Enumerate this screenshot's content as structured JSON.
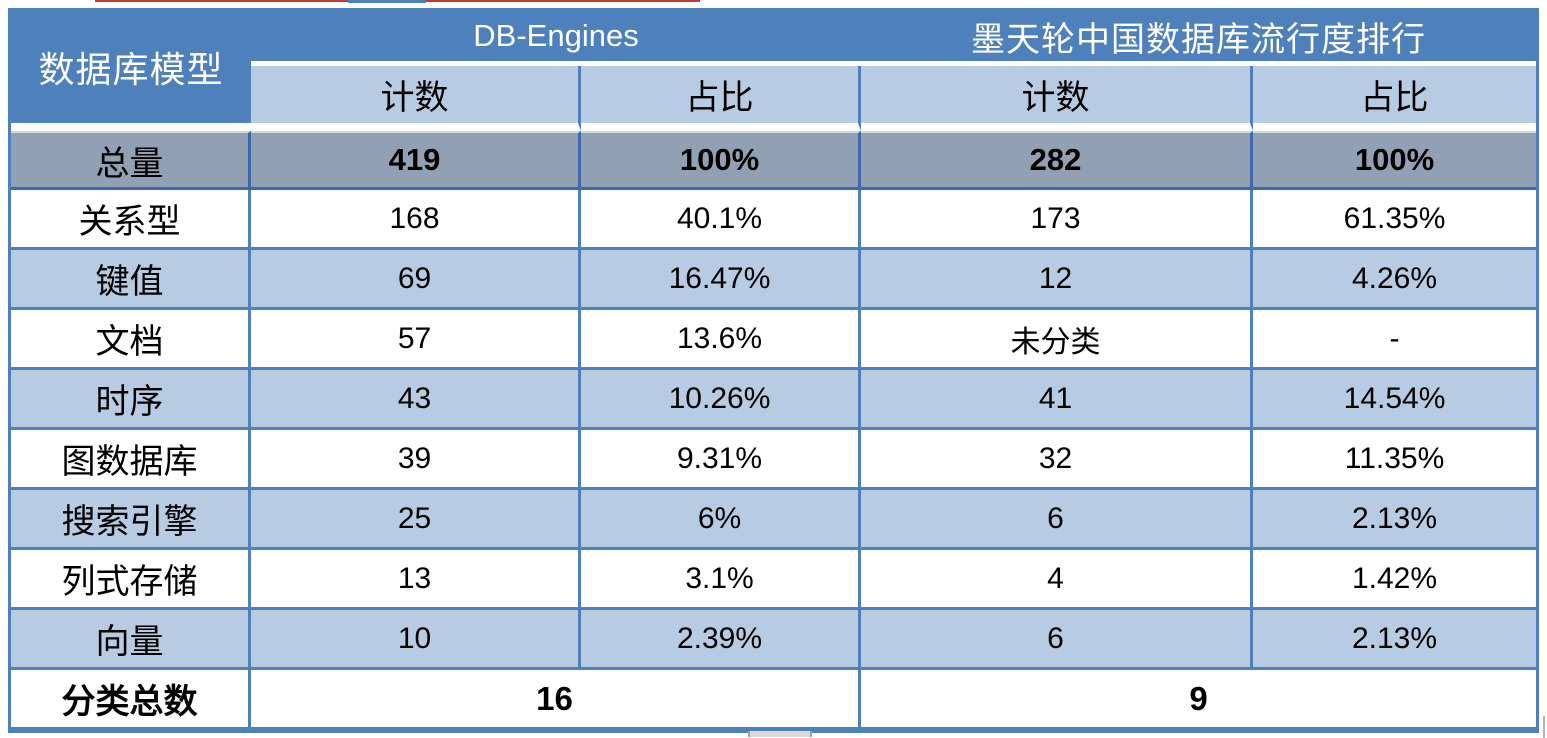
{
  "colors": {
    "header_blue": "#4E80BC",
    "band_light_blue": "#B7CBE3",
    "total_row_gray": "#91A0B3",
    "grid_blue": "#4E80BC",
    "grid_dark_blue": "#3C69A8",
    "header_text": "#FFFFFF",
    "body_text": "#000000",
    "top_artifact_red": "#C23A34"
  },
  "chart_data": {
    "type": "table",
    "corner_header": "数据库模型",
    "groups": [
      {
        "label": "DB-Engines",
        "colspan": 2
      },
      {
        "label": "墨天轮中国数据库流行度排行",
        "colspan": 2
      }
    ],
    "sub_headers": [
      "计数",
      "占比",
      "计数",
      "占比"
    ],
    "total_row": {
      "label": "总量",
      "cells": [
        "419",
        "100%",
        "282",
        "100%"
      ]
    },
    "rows": [
      {
        "label": "关系型",
        "cells": [
          "168",
          "40.1%",
          "173",
          "61.35%"
        ]
      },
      {
        "label": "键值",
        "cells": [
          "69",
          "16.47%",
          "12",
          "4.26%"
        ]
      },
      {
        "label": "文档",
        "cells": [
          "57",
          "13.6%",
          "未分类",
          "-"
        ]
      },
      {
        "label": "时序",
        "cells": [
          "43",
          "10.26%",
          "41",
          "14.54%"
        ]
      },
      {
        "label": "图数据库",
        "cells": [
          "39",
          "9.31%",
          "32",
          "11.35%"
        ]
      },
      {
        "label": "搜索引擎",
        "cells": [
          "25",
          "6%",
          "6",
          "2.13%"
        ]
      },
      {
        "label": "列式存储",
        "cells": [
          "13",
          "3.1%",
          "4",
          "1.42%"
        ]
      },
      {
        "label": "向量",
        "cells": [
          "10",
          "2.39%",
          "6",
          "2.13%"
        ]
      }
    ],
    "footer": {
      "label": "分类总数",
      "db_engines_categories": "16",
      "motianlun_categories": "9"
    }
  }
}
